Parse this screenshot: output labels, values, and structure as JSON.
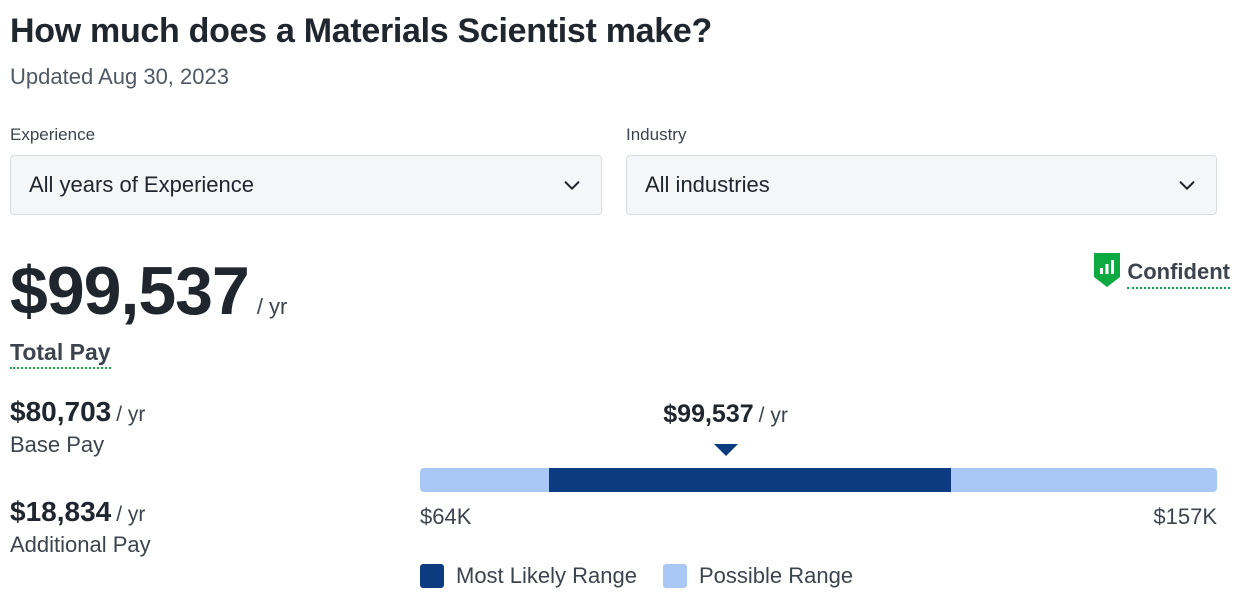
{
  "header": {
    "title": "How much does a Materials Scientist make?",
    "updated": "Updated Aug 30, 2023"
  },
  "filters": {
    "experience": {
      "label": "Experience",
      "value": "All years of Experience"
    },
    "industry": {
      "label": "Industry",
      "value": "All industries"
    }
  },
  "total_pay": {
    "amount": "$99,537",
    "unit": "/ yr",
    "label": "Total Pay"
  },
  "confidence": {
    "label": "Confident",
    "color": "#0caa41",
    "icon": "bar-chart-shield-icon"
  },
  "base_pay": {
    "amount": "$80,703",
    "unit": "/ yr",
    "label": "Base Pay"
  },
  "additional_pay": {
    "amount": "$18,834",
    "unit": "/ yr",
    "label": "Additional Pay"
  },
  "pay_range": {
    "marker_amount": "$99,537",
    "marker_unit": "/ yr",
    "min_label": "$64K",
    "max_label": "$157K",
    "legend_likely": "Most Likely Range",
    "legend_possible": "Possible Range",
    "colors": {
      "likely": "#0d3b82",
      "possible": "#a9c8f5"
    }
  },
  "chart_data": {
    "type": "bar",
    "range_min": 64000,
    "range_max": 157000,
    "most_likely_min": 79000,
    "most_likely_max": 126000,
    "median": 99537
  }
}
